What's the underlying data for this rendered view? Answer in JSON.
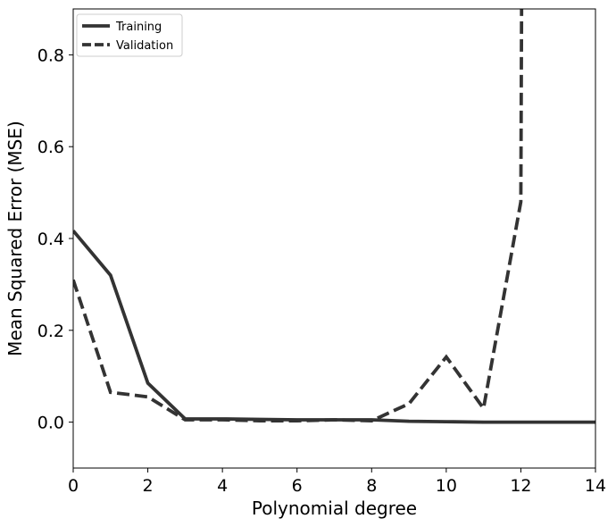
{
  "chart_data": {
    "type": "line",
    "title": "",
    "xlabel": "Polynomial degree",
    "ylabel": "Mean Squared Error (MSE)",
    "xlim": [
      0,
      14
    ],
    "ylim": [
      -0.1,
      0.9
    ],
    "xticks": [
      "0",
      "2",
      "4",
      "6",
      "8",
      "10",
      "12",
      "14"
    ],
    "yticks": [
      "0.0",
      "0.2",
      "0.4",
      "0.6",
      "0.8"
    ],
    "grid": false,
    "legend_position": "top-left",
    "series": [
      {
        "name": "Training",
        "style": "solid",
        "color": "#333333",
        "x": [
          0,
          1,
          2,
          3,
          4,
          5,
          6,
          7,
          8,
          9,
          10,
          11,
          12,
          13,
          14
        ],
        "y": [
          0.417,
          0.32,
          0.085,
          0.007,
          0.007,
          0.006,
          0.005,
          0.005,
          0.005,
          0.002,
          0.001,
          0.0,
          0.0,
          0.0,
          0.0
        ]
      },
      {
        "name": "Validation",
        "style": "dashed",
        "color": "#333333",
        "x": [
          0,
          1,
          2,
          3,
          4,
          5,
          6,
          7,
          8,
          9,
          10,
          11,
          12,
          12.02
        ],
        "y": [
          0.31,
          0.065,
          0.055,
          0.005,
          0.005,
          0.003,
          0.003,
          0.005,
          0.003,
          0.04,
          0.142,
          0.03,
          0.48,
          0.93
        ]
      }
    ]
  }
}
